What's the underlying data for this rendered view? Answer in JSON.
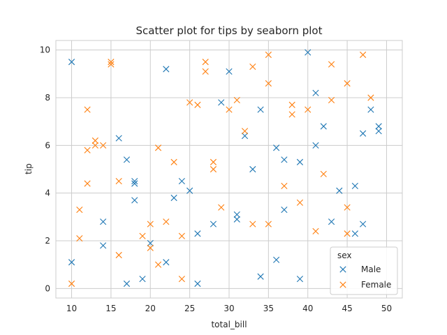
{
  "chart_data": {
    "type": "scatter",
    "title": "Scatter plot for tips by seaborn plot",
    "xlabel": "total_bill",
    "ylabel": "tip",
    "xlim": [
      8,
      52
    ],
    "ylim": [
      -0.4,
      10.4
    ],
    "xticks": [
      10,
      15,
      20,
      25,
      30,
      35,
      40,
      45,
      50
    ],
    "yticks": [
      0,
      2,
      4,
      6,
      8,
      10
    ],
    "grid": true,
    "marker": "x",
    "legend": {
      "title": "sex",
      "placement": "lower-right"
    },
    "series": [
      {
        "name": "Male",
        "color": "#1f77b4",
        "points": [
          [
            10,
            9.5
          ],
          [
            10,
            1.1
          ],
          [
            14,
            2.8
          ],
          [
            14,
            1.8
          ],
          [
            16,
            6.3
          ],
          [
            17,
            5.4
          ],
          [
            17,
            0.2
          ],
          [
            18,
            4.5
          ],
          [
            18,
            4.4
          ],
          [
            18,
            3.7
          ],
          [
            19,
            0.4
          ],
          [
            20,
            1.9
          ],
          [
            22,
            9.2
          ],
          [
            22,
            1.1
          ],
          [
            23,
            3.8
          ],
          [
            24,
            4.5
          ],
          [
            25,
            4.1
          ],
          [
            26,
            2.3
          ],
          [
            26,
            0.2
          ],
          [
            28,
            2.7
          ],
          [
            29,
            7.8
          ],
          [
            30,
            9.1
          ],
          [
            31,
            3.1
          ],
          [
            31,
            2.9
          ],
          [
            32,
            6.4
          ],
          [
            33,
            5.0
          ],
          [
            34,
            7.5
          ],
          [
            34,
            0.5
          ],
          [
            36,
            5.9
          ],
          [
            36,
            1.2
          ],
          [
            37,
            5.4
          ],
          [
            37,
            3.3
          ],
          [
            39,
            5.3
          ],
          [
            39,
            0.4
          ],
          [
            40,
            9.9
          ],
          [
            41,
            8.2
          ],
          [
            41,
            6.0
          ],
          [
            42,
            6.8
          ],
          [
            43,
            2.8
          ],
          [
            44,
            4.1
          ],
          [
            46,
            4.3
          ],
          [
            46,
            2.3
          ],
          [
            47,
            6.5
          ],
          [
            47,
            2.7
          ],
          [
            48,
            7.5
          ],
          [
            49,
            6.8
          ],
          [
            49,
            6.6
          ]
        ]
      },
      {
        "name": "Female",
        "color": "#ff7f0e",
        "points": [
          [
            10,
            0.2
          ],
          [
            11,
            3.3
          ],
          [
            11,
            2.1
          ],
          [
            12,
            7.5
          ],
          [
            12,
            5.8
          ],
          [
            12,
            4.4
          ],
          [
            13,
            6.2
          ],
          [
            13,
            6.0
          ],
          [
            14,
            6.0
          ],
          [
            15,
            9.5
          ],
          [
            15,
            9.4
          ],
          [
            16,
            4.5
          ],
          [
            16,
            1.4
          ],
          [
            19,
            2.2
          ],
          [
            20,
            2.7
          ],
          [
            20,
            1.7
          ],
          [
            21,
            5.9
          ],
          [
            21,
            1.0
          ],
          [
            22,
            2.8
          ],
          [
            23,
            5.3
          ],
          [
            24,
            2.2
          ],
          [
            24,
            0.4
          ],
          [
            25,
            7.8
          ],
          [
            26,
            7.7
          ],
          [
            27,
            9.5
          ],
          [
            27,
            9.1
          ],
          [
            28,
            5.3
          ],
          [
            28,
            5.0
          ],
          [
            29,
            3.4
          ],
          [
            30,
            7.5
          ],
          [
            31,
            7.9
          ],
          [
            32,
            6.6
          ],
          [
            33,
            9.3
          ],
          [
            33,
            2.7
          ],
          [
            35,
            9.8
          ],
          [
            35,
            8.6
          ],
          [
            35,
            2.7
          ],
          [
            37,
            4.3
          ],
          [
            38,
            7.7
          ],
          [
            38,
            7.3
          ],
          [
            39,
            3.6
          ],
          [
            40,
            7.5
          ],
          [
            41,
            2.4
          ],
          [
            42,
            4.8
          ],
          [
            43,
            9.4
          ],
          [
            43,
            7.9
          ],
          [
            45,
            8.6
          ],
          [
            45,
            3.4
          ],
          [
            45,
            2.3
          ],
          [
            47,
            9.8
          ],
          [
            48,
            8.0
          ]
        ]
      }
    ]
  }
}
